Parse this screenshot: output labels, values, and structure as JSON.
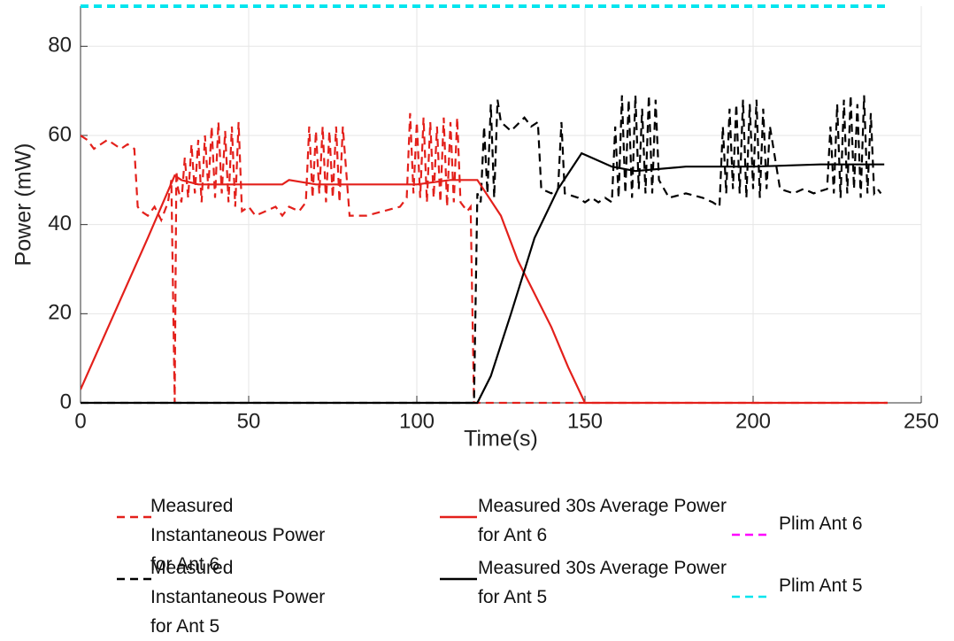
{
  "chart_data": {
    "type": "line",
    "x_label": "Time(s)",
    "y_label": "Power (mW)",
    "xlim": [
      0,
      250
    ],
    "xticks": [
      0,
      50,
      100,
      150,
      200,
      250
    ],
    "ylim": [
      0,
      89
    ],
    "yticks": [
      0,
      20,
      40,
      60,
      80
    ],
    "grid": true,
    "legend": "bottom",
    "series": [
      {
        "name": "Measured Instantaneous Power for Ant 6",
        "color": "#e3201b",
        "style": "dashed",
        "x": [
          0,
          2,
          4,
          6,
          8,
          10,
          12,
          14,
          16,
          17,
          18,
          20,
          22,
          24,
          26,
          27,
          28,
          28.5,
          29,
          30,
          31,
          32,
          33,
          34,
          35,
          36,
          37,
          38,
          39,
          40,
          41,
          42,
          43,
          44,
          45,
          46,
          47,
          48,
          50,
          52,
          55,
          58,
          60,
          62,
          65,
          67,
          68,
          69,
          70,
          71,
          72,
          73,
          74,
          75,
          76,
          77,
          78,
          80,
          85,
          90,
          95,
          97,
          98,
          99,
          100,
          101,
          102,
          103,
          104,
          105,
          106,
          107,
          108,
          109,
          110,
          111,
          112,
          113,
          115,
          116,
          117,
          118,
          240
        ],
        "values": [
          60,
          59,
          57,
          58,
          59,
          58,
          57,
          58,
          57,
          44,
          43,
          42,
          44,
          41,
          45,
          50,
          0,
          52,
          48,
          45,
          55,
          46,
          58,
          47,
          59,
          45,
          60,
          48,
          62,
          46,
          63,
          47,
          61,
          45,
          62,
          44,
          63,
          43,
          44,
          42,
          43,
          44,
          42,
          44,
          43,
          45,
          62,
          46,
          61,
          47,
          62,
          45,
          61,
          46,
          62,
          45,
          62,
          42,
          42,
          43,
          44,
          46,
          65,
          47,
          63,
          46,
          64,
          45,
          63,
          46,
          62,
          45,
          64,
          44,
          63,
          45,
          64,
          45,
          43,
          44,
          0,
          0,
          0
        ]
      },
      {
        "name": "Measured Instantaneous Power for Ant 5",
        "color": "#000000",
        "style": "dashed",
        "x": [
          0,
          117,
          118,
          119,
          120,
          121,
          122,
          123,
          124,
          125,
          128,
          132,
          134,
          136,
          137,
          140,
          142,
          143,
          144,
          148,
          150,
          152,
          154,
          156,
          158,
          159,
          160,
          161,
          162,
          163,
          164,
          165,
          166,
          167,
          168,
          169,
          170,
          171,
          172,
          175,
          180,
          185,
          188,
          190,
          191,
          192,
          193,
          194,
          195,
          196,
          197,
          198,
          199,
          200,
          201,
          202,
          203,
          204,
          205,
          208,
          212,
          215,
          218,
          222,
          223,
          224,
          225,
          226,
          227,
          228,
          229,
          230,
          231,
          232,
          233,
          234,
          235,
          236,
          237,
          238
        ],
        "values": [
          0,
          0,
          47,
          45,
          62,
          47,
          67,
          46,
          68,
          63,
          61,
          64,
          62,
          63,
          48,
          47,
          48,
          63,
          47,
          46,
          45,
          46,
          45,
          46,
          45,
          62,
          46,
          69,
          47,
          68,
          46,
          69,
          48,
          66,
          47,
          69,
          47,
          68,
          50,
          46,
          47,
          46,
          45,
          44,
          62,
          47,
          66,
          48,
          67,
          47,
          68,
          46,
          67,
          48,
          68,
          46,
          66,
          48,
          62,
          48,
          47,
          48,
          47,
          48,
          62,
          47,
          67,
          46,
          68,
          47,
          69,
          48,
          67,
          46,
          69,
          47,
          65,
          47,
          48,
          47
        ]
      },
      {
        "name": "Measured 30s Average Power for Ant 6",
        "color": "#e3201b",
        "style": "solid",
        "x": [
          0,
          10,
          20,
          28,
          30,
          35,
          50,
          60,
          62,
          70,
          80,
          100,
          110,
          118,
          125,
          130,
          140,
          145,
          150,
          240
        ],
        "values": [
          3,
          20,
          37,
          51,
          50,
          49,
          49,
          49,
          50,
          49,
          49,
          49,
          50,
          50,
          42,
          32,
          17,
          8,
          0,
          0
        ]
      },
      {
        "name": "Measured 30s Average Power for Ant 5",
        "color": "#000000",
        "style": "solid",
        "x": [
          0,
          118,
          122,
          128,
          135,
          142,
          149,
          152,
          158,
          165,
          180,
          200,
          220,
          239
        ],
        "values": [
          0,
          0,
          6,
          20,
          37,
          48,
          56,
          55,
          53,
          52,
          53,
          53,
          53.5,
          53.5
        ]
      },
      {
        "name": "Plim Ant 6",
        "color": "#ff00ff",
        "style": "dashed",
        "x": [
          0,
          240
        ],
        "values": [
          89,
          89
        ]
      },
      {
        "name": "Plim Ant 5",
        "color": "#00e5ee",
        "style": "dashed",
        "x": [
          0,
          240
        ],
        "values": [
          89,
          89
        ]
      }
    ]
  }
}
